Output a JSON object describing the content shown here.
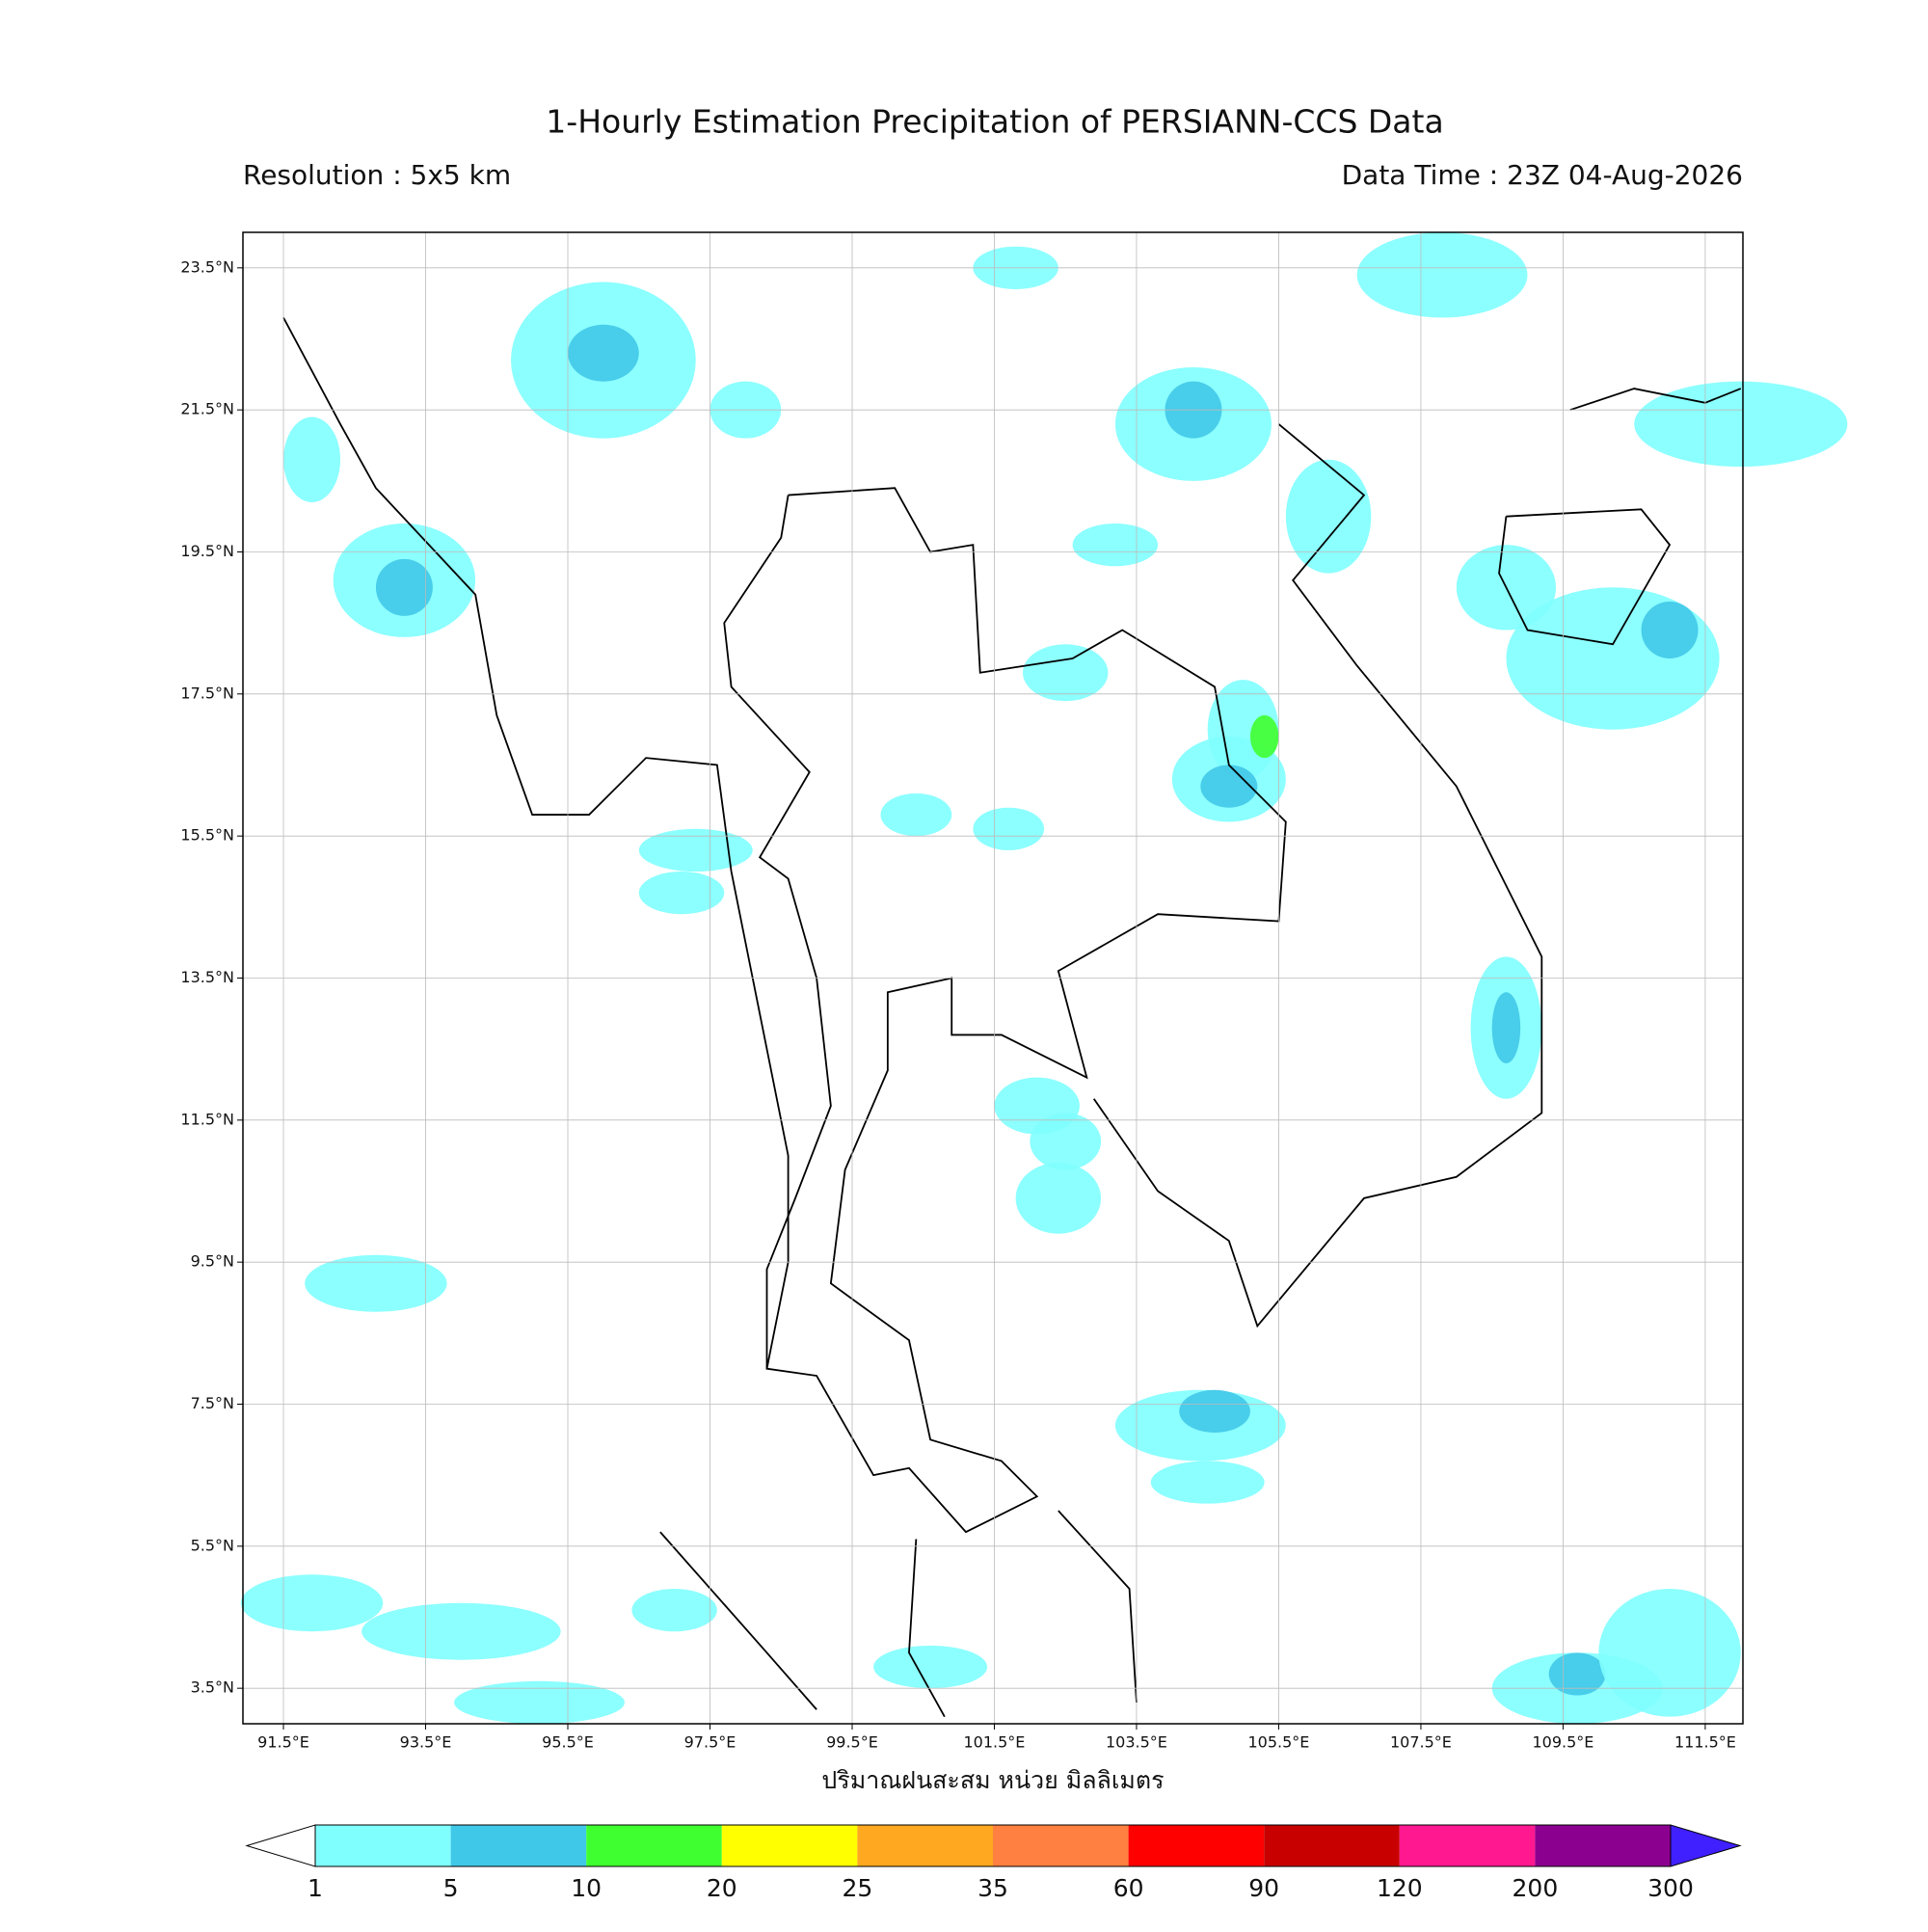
{
  "title": "1-Hourly Estimation Precipitation of PERSIANN-CCS Data",
  "resolution": "Resolution : 5x5 km",
  "data_time": "Data Time : 23Z 04-Aug-2026",
  "map": {
    "xlim": [
      90.93,
      112.03
    ],
    "ylim": [
      3.0,
      24.0
    ],
    "xticks": [
      {
        "value": 91.5,
        "label": "91.5°E"
      },
      {
        "value": 93.5,
        "label": "93.5°E"
      },
      {
        "value": 95.5,
        "label": "95.5°E"
      },
      {
        "value": 97.5,
        "label": "97.5°E"
      },
      {
        "value": 99.5,
        "label": "99.5°E"
      },
      {
        "value": 101.5,
        "label": "101.5°E"
      },
      {
        "value": 103.5,
        "label": "103.5°E"
      },
      {
        "value": 105.5,
        "label": "105.5°E"
      },
      {
        "value": 107.5,
        "label": "107.5°E"
      },
      {
        "value": 109.5,
        "label": "109.5°E"
      },
      {
        "value": 111.5,
        "label": "111.5°E"
      }
    ],
    "yticks": [
      {
        "value": 3.5,
        "label": "3.5°N"
      },
      {
        "value": 5.5,
        "label": "5.5°N"
      },
      {
        "value": 7.5,
        "label": "7.5°N"
      },
      {
        "value": 9.5,
        "label": "9.5°N"
      },
      {
        "value": 11.5,
        "label": "11.5°N"
      },
      {
        "value": 13.5,
        "label": "13.5°N"
      },
      {
        "value": 15.5,
        "label": "15.5°N"
      },
      {
        "value": 17.5,
        "label": "17.5°N"
      },
      {
        "value": 19.5,
        "label": "19.5°N"
      },
      {
        "value": 21.5,
        "label": "21.5°N"
      },
      {
        "value": 23.5,
        "label": "23.5°N"
      }
    ],
    "xlabel": "ปริมาณฝนสะสม หน่วย มิลลิเมตร"
  },
  "colorbar": {
    "levels": [
      1,
      5,
      10,
      20,
      25,
      35,
      60,
      90,
      120,
      200,
      300
    ],
    "colors": [
      "#80ffff",
      "#40c8e8",
      "#40ff30",
      "#ffff00",
      "#ffa820",
      "#ff8040",
      "#ff0000",
      "#c80000",
      "#ff1890",
      "#8c0090"
    ],
    "under_color": "#ffffff",
    "over_color": "#4020ff"
  }
}
